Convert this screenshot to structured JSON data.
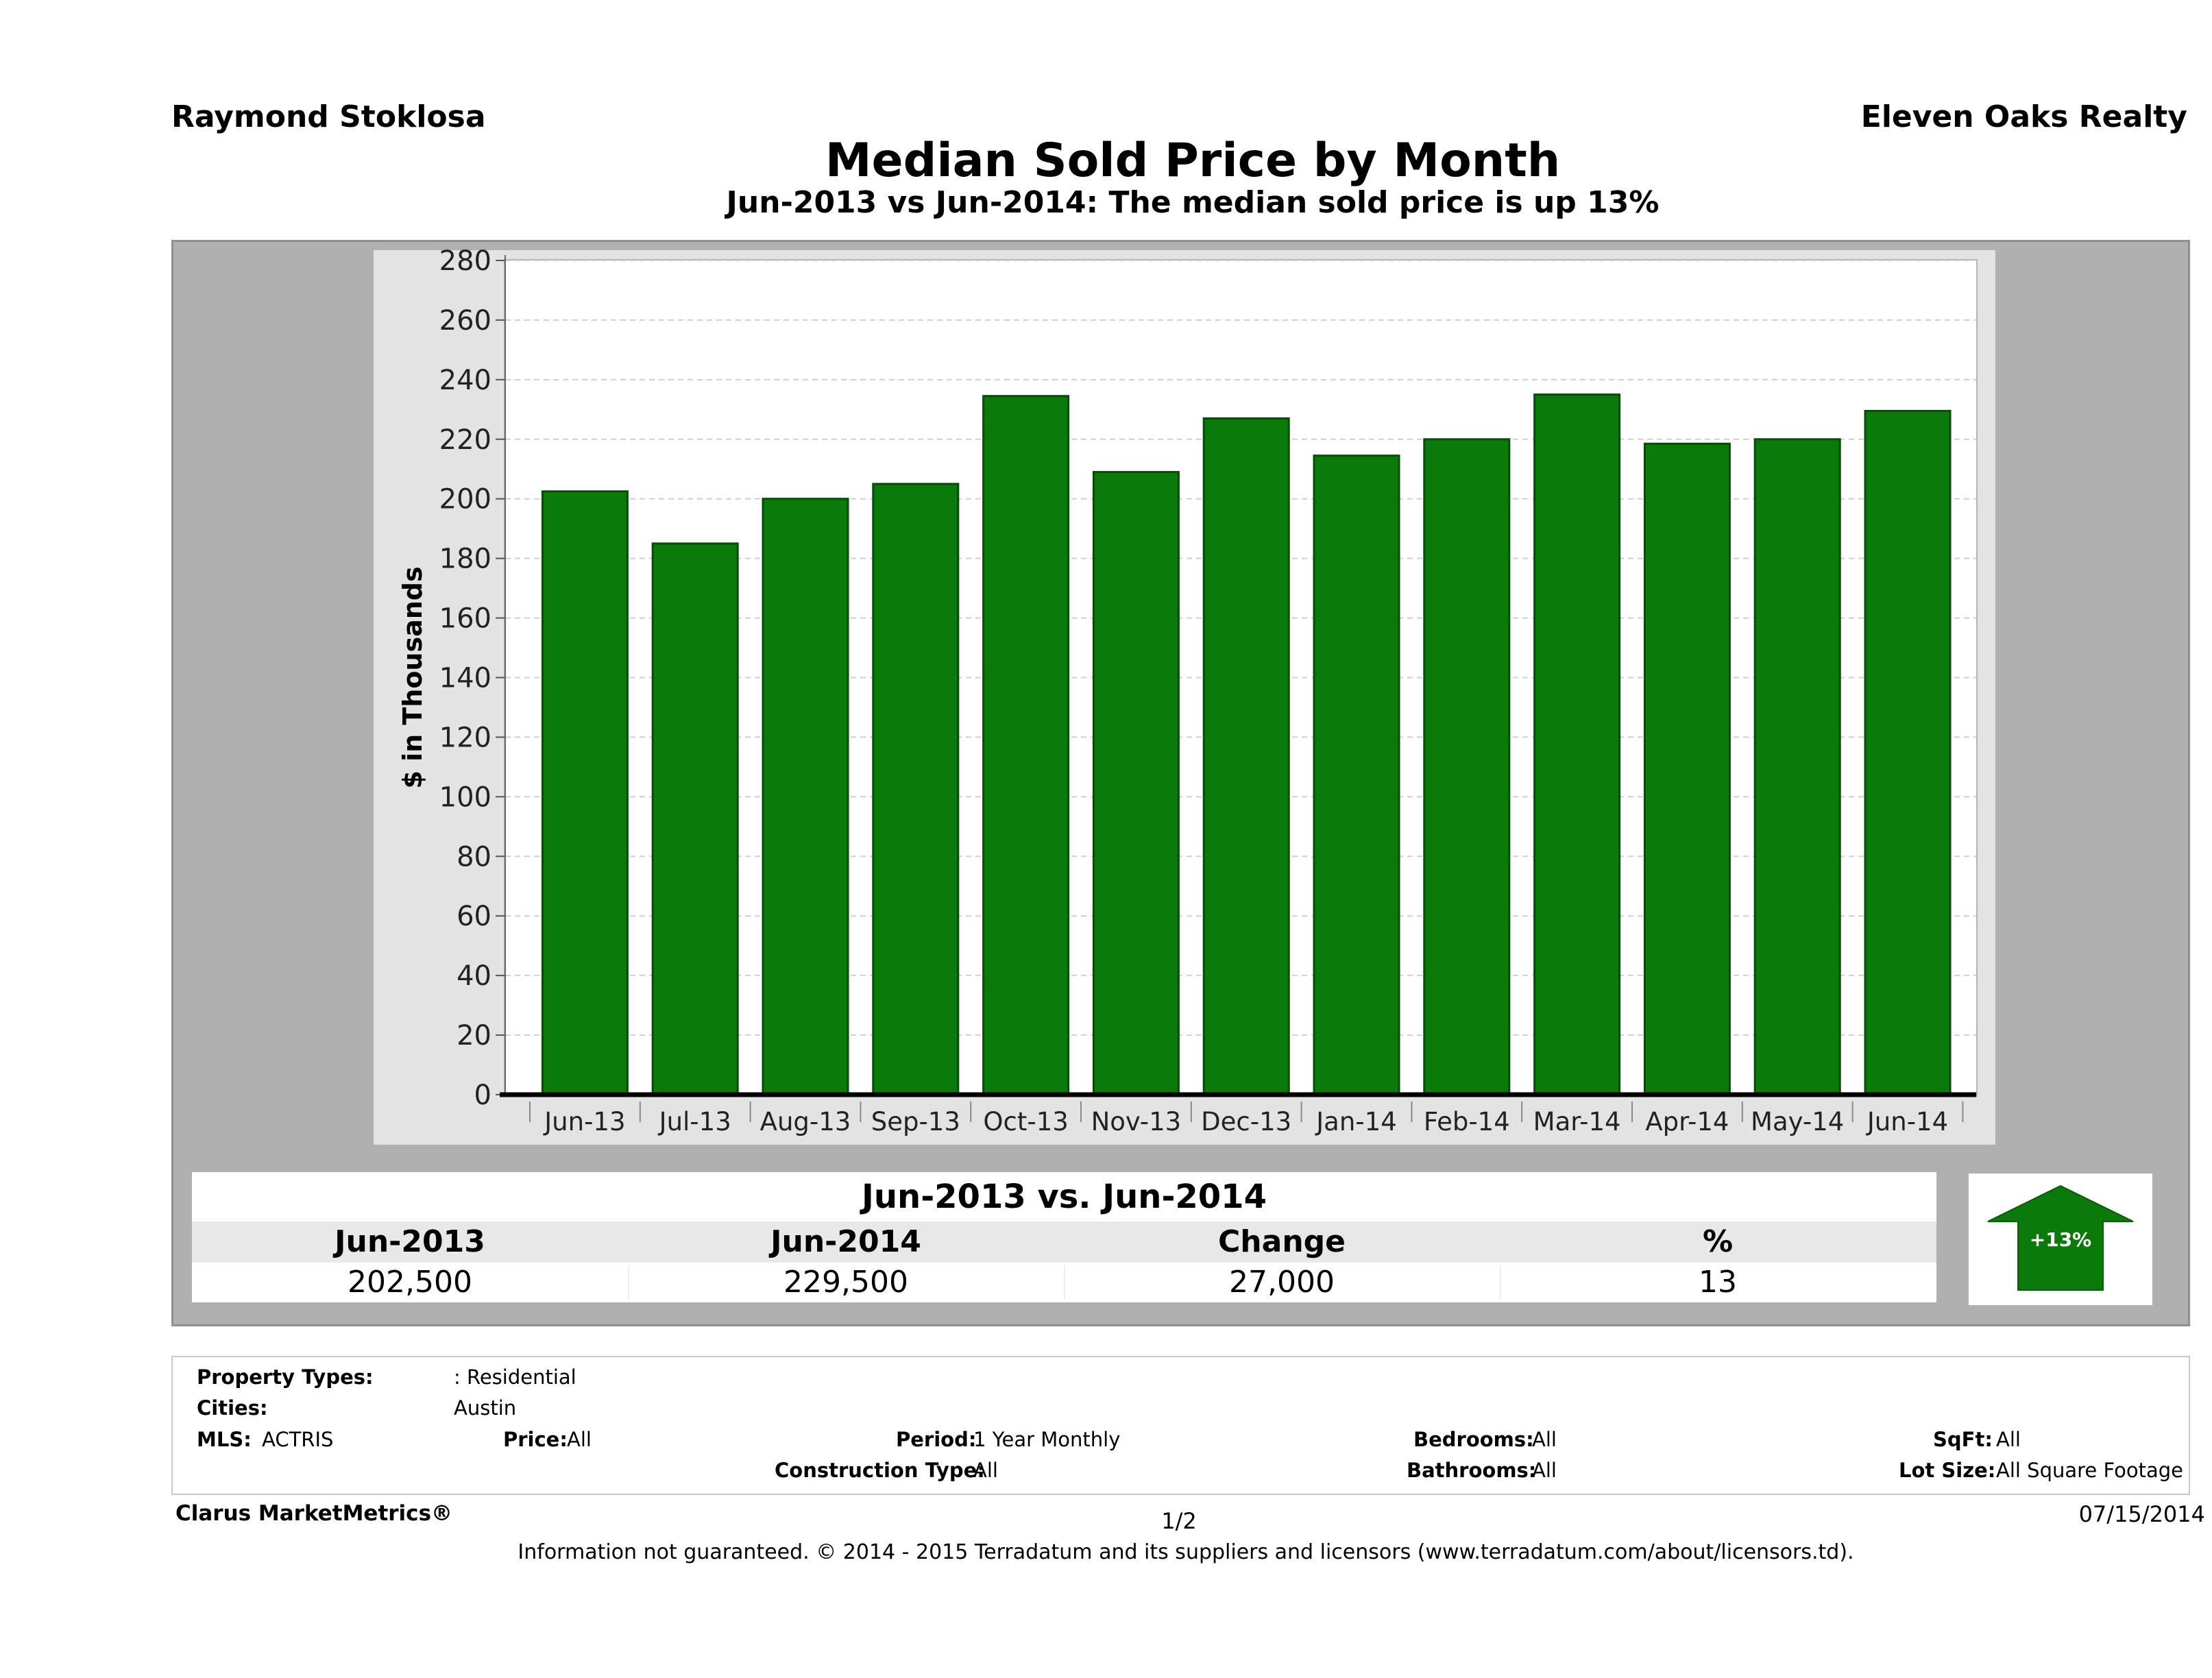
{
  "header": {
    "agent": "Raymond Stoklosa",
    "company": "Eleven Oaks Realty",
    "title": "Median Sold Price by Month",
    "subtitle": "Jun-2013 vs Jun-2014: The median sold price is up 13%"
  },
  "chart_data": {
    "type": "bar",
    "title": "Median Sold Price by Month",
    "ylabel": "$ in Thousands",
    "xlabel": "",
    "ylim": [
      0,
      280
    ],
    "yticks": [
      0,
      20,
      40,
      60,
      80,
      100,
      120,
      140,
      160,
      180,
      200,
      220,
      240,
      260,
      280
    ],
    "grid": true,
    "bar_color": "#0a7a0a",
    "categories": [
      "Jun-13",
      "Jul-13",
      "Aug-13",
      "Sep-13",
      "Oct-13",
      "Nov-13",
      "Dec-13",
      "Jan-14",
      "Feb-14",
      "Mar-14",
      "Apr-14",
      "May-14",
      "Jun-14"
    ],
    "values": [
      202.5,
      185,
      200,
      205,
      234.5,
      209,
      227,
      214.5,
      220,
      235,
      218.5,
      220,
      229.5
    ]
  },
  "summary": {
    "heading": "Jun-2013 vs. Jun-2014",
    "columns": [
      "Jun-2013",
      "Jun-2014",
      "Change",
      "%"
    ],
    "values": [
      "202,500",
      "229,500",
      "27,000",
      "13"
    ],
    "badge": "+13%",
    "badge_color": "#0a7a0a"
  },
  "criteria": {
    "property_types_label": "Property Types:",
    "property_types_value": ": Residential",
    "cities_label": "Cities:",
    "cities_value": "Austin",
    "mls_label": "MLS:",
    "mls_value": "ACTRIS",
    "price_label": "Price:",
    "price_value": "All",
    "period_label": "Period:",
    "period_value": "1 Year Monthly",
    "bedrooms_label": "Bedrooms:",
    "bedrooms_value": "All",
    "sqft_label": "SqFt:",
    "sqft_value": "All",
    "construction_label": "Construction Type:",
    "construction_value": "All",
    "bathrooms_label": "Bathrooms:",
    "bathrooms_value": "All",
    "lot_label": "Lot Size:",
    "lot_value": "All Square Footage"
  },
  "footer": {
    "brand": "Clarus MarketMetrics®",
    "page": "1/2",
    "date": "07/15/2014",
    "disclaimer": "Information not guaranteed. © 2014 - 2015 Terradatum and its suppliers and licensors (www.terradatum.com/about/licensors.td)."
  }
}
